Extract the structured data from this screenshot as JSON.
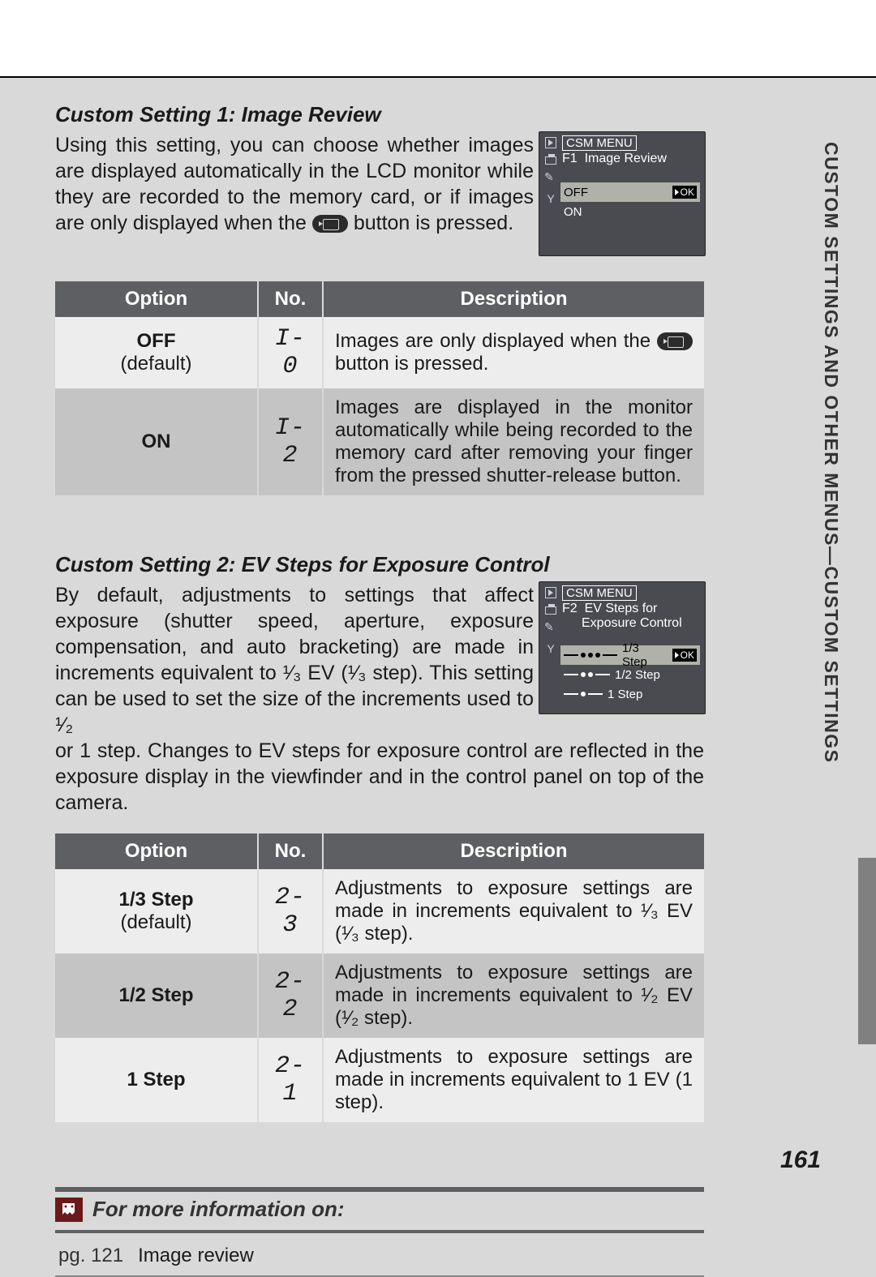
{
  "sideLabel": "CUSTOM SETTINGS AND OTHER MENUS—CUSTOM SETTINGS",
  "pageNumber": "161",
  "section1": {
    "title": "Custom Setting 1: Image Review",
    "body_before_icon": "Using this setting, you can choose whether images are displayed automatically in the LCD monitor while they are recorded to the memory card, or if images are only displayed when the ",
    "body_after_icon": " button is pressed.",
    "lcd": {
      "header": "CSM MENU",
      "f_label": "F1",
      "sub": "Image Review",
      "rows": [
        {
          "label": "OFF",
          "selected": true
        },
        {
          "label": "ON",
          "selected": false
        }
      ],
      "ok": "OK"
    },
    "table": {
      "headers": {
        "option": "Option",
        "no": "No.",
        "desc": "Description"
      },
      "rows": [
        {
          "option_main": "OFF",
          "option_sub": "(default)",
          "no": "I-0",
          "desc_a": "Images are only displayed when the ",
          "desc_b": " button is pressed.",
          "has_icon": true,
          "rowClass": "rA"
        },
        {
          "option_main": "ON",
          "option_sub": "",
          "no": "I-2",
          "desc_a": "Images are displayed in the monitor automatically while being recorded to the memory card after removing your finger from the pressed shutter-release button.",
          "desc_b": "",
          "has_icon": false,
          "rowClass": "rB"
        }
      ]
    }
  },
  "section2": {
    "title": "Custom Setting 2: EV Steps for Exposure Control",
    "body_parts": {
      "p1": "By default, adjustments to settings that affect exposure (shutter speed, aperture, exposure compensation, and auto bracketing) are made in increments equivalent to ",
      "f1": "¹⁄₃",
      "p2": " EV (",
      "f2": "¹⁄₃",
      "p3": " step). This setting can be used to set the size of the increments used to ",
      "f3": "¹⁄₂",
      "p4": " or 1 step.  Changes to EV steps for exposure control are reflected in the exposure display in the viewfinder and in the control panel on top of the camera."
    },
    "lcd": {
      "header": "CSM MENU",
      "f_label": "F2",
      "sub": "EV Steps for",
      "sub2": "Exposure Control",
      "rows": [
        {
          "label": "1/3 Step",
          "selected": true,
          "dots": 3
        },
        {
          "label": "1/2 Step",
          "selected": false,
          "dots": 2
        },
        {
          "label": "1 Step",
          "selected": false,
          "dots": 1
        }
      ],
      "ok": "OK"
    },
    "table": {
      "headers": {
        "option": "Option",
        "no": "No.",
        "desc": "Description"
      },
      "rows": [
        {
          "option_main": "1/3 Step",
          "option_sub": "(default)",
          "no": "2-3",
          "desc_a": "Adjustments to exposure settings are made in increments equivalent to ",
          "frac": "¹⁄₃",
          "desc_b": " EV (",
          "frac2": "¹⁄₃",
          "desc_c": " step).",
          "rowClass": "rA"
        },
        {
          "option_main": "1/2 Step",
          "option_sub": "",
          "no": "2-2",
          "desc_a": "Adjustments to exposure settings are made in increments equivalent to ",
          "frac": "¹⁄₂",
          "desc_b": " EV (",
          "frac2": "¹⁄₂",
          "desc_c": " step).",
          "rowClass": "rB"
        },
        {
          "option_main": "1 Step",
          "option_sub": "",
          "no": "2- 1",
          "desc_a": "Adjustments to exposure settings are made in increments equivalent to 1 EV (1 step).",
          "frac": "",
          "desc_b": "",
          "frac2": "",
          "desc_c": "",
          "rowClass": "rA"
        }
      ]
    }
  },
  "moreInfo": {
    "title": "For more information on:",
    "pg": "pg. 121",
    "label": "Image review"
  }
}
